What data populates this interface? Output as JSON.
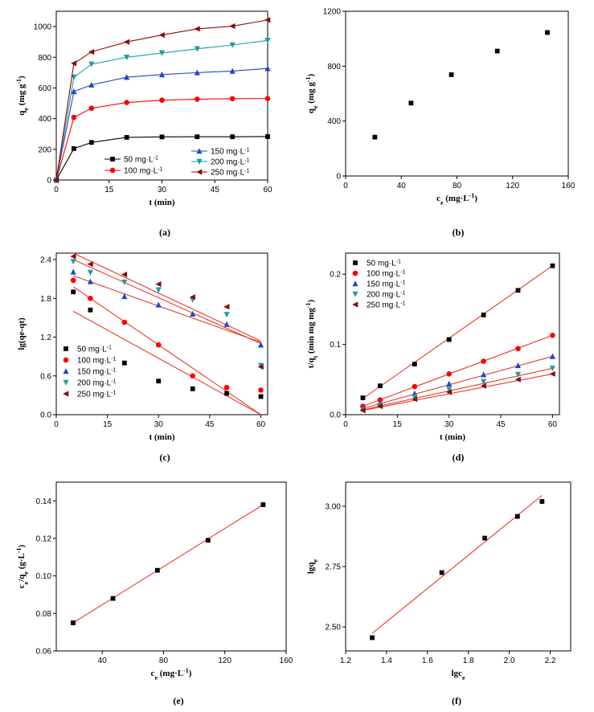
{
  "series_colors": [
    "#000000",
    "#ff0000",
    "#1f46c8",
    "#1e9e9e",
    "#8b0a0a"
  ],
  "fit_line_color": "#e8392a",
  "chart_data": [
    {
      "id": "a",
      "type": "line",
      "panel_label": "(a)",
      "xlabel_parts": [
        {
          "t": "t (min)"
        }
      ],
      "ylabel_parts": [
        {
          "t": "q"
        },
        {
          "t": "e",
          "sub": true
        },
        {
          "t": " (mg g"
        },
        {
          "t": "-1",
          "sup": true
        },
        {
          "t": ")"
        }
      ],
      "xlim": [
        0,
        60
      ],
      "ylim": [
        0,
        1100
      ],
      "xticks": [
        0,
        15,
        30,
        45,
        60
      ],
      "yticks": [
        0,
        200,
        400,
        600,
        800,
        1000
      ],
      "connect_points": true,
      "legend": {
        "placement": "bottom-right",
        "columns": 2
      },
      "series": [
        {
          "name_main": "50 mg·L",
          "name_sup": "-1",
          "marker": "square",
          "points": [
            [
              0,
              0
            ],
            [
              5,
              205
            ],
            [
              10,
              245
            ],
            [
              20,
              278
            ],
            [
              30,
              281
            ],
            [
              40,
              282
            ],
            [
              50,
              282
            ],
            [
              60,
              283
            ]
          ]
        },
        {
          "name_main": "100 mg·L",
          "name_sup": "-1",
          "marker": "circle",
          "points": [
            [
              0,
              0
            ],
            [
              5,
              408
            ],
            [
              10,
              468
            ],
            [
              20,
              505
            ],
            [
              30,
              520
            ],
            [
              40,
              527
            ],
            [
              50,
              530
            ],
            [
              60,
              531
            ]
          ]
        },
        {
          "name_main": "150 mg·L",
          "name_sup": "-1",
          "marker": "triangle-up",
          "points": [
            [
              0,
              0
            ],
            [
              5,
              577
            ],
            [
              10,
              620
            ],
            [
              20,
              670
            ],
            [
              30,
              687
            ],
            [
              40,
              700
            ],
            [
              50,
              710
            ],
            [
              60,
              727
            ]
          ]
        },
        {
          "name_main": "200 mg·L",
          "name_sup": "-1",
          "marker": "triangle-down",
          "points": [
            [
              0,
              0
            ],
            [
              5,
              670
            ],
            [
              10,
              755
            ],
            [
              20,
              800
            ],
            [
              30,
              828
            ],
            [
              40,
              855
            ],
            [
              50,
              880
            ],
            [
              60,
              910
            ]
          ]
        },
        {
          "name_main": "250 mg·L",
          "name_sup": "-1",
          "marker": "triangle-left",
          "points": [
            [
              0,
              0
            ],
            [
              5,
              760
            ],
            [
              10,
              835
            ],
            [
              20,
              900
            ],
            [
              30,
              945
            ],
            [
              40,
              985
            ],
            [
              50,
              1003
            ],
            [
              60,
              1043
            ]
          ]
        }
      ]
    },
    {
      "id": "b",
      "type": "scatter",
      "panel_label": "(b)",
      "xlabel_parts": [
        {
          "t": "c"
        },
        {
          "t": "e",
          "sub": true
        },
        {
          "t": " (mg·L"
        },
        {
          "t": "-1",
          "sup": true
        },
        {
          "t": ")"
        }
      ],
      "ylabel_parts": [
        {
          "t": "q"
        },
        {
          "t": "e",
          "sub": true
        },
        {
          "t": " (mg g"
        },
        {
          "t": "-1",
          "sup": true
        },
        {
          "t": ")"
        }
      ],
      "xlim": [
        0,
        160
      ],
      "ylim": [
        0,
        1200
      ],
      "xticks": [
        0,
        40,
        80,
        120,
        160
      ],
      "yticks": [
        0,
        400,
        800,
        1200
      ],
      "series": [
        {
          "marker": "square",
          "points": [
            [
              21,
              283
            ],
            [
              47,
              531
            ],
            [
              76,
              738
            ],
            [
              109,
              910
            ],
            [
              145,
              1045
            ]
          ]
        }
      ]
    },
    {
      "id": "c",
      "type": "scatter",
      "panel_label": "(c)",
      "xlabel_parts": [
        {
          "t": "t (min)"
        }
      ],
      "ylabel_parts": [
        {
          "t": "lg(qe-qt)"
        }
      ],
      "xlim": [
        0,
        62
      ],
      "ylim": [
        0,
        2.5
      ],
      "xticks": [
        0,
        15,
        30,
        45,
        60
      ],
      "yticks": [
        0.0,
        0.6,
        1.2,
        1.8,
        2.4
      ],
      "ytick_decimals": 1,
      "legend": {
        "placement": "bottom-left",
        "columns": 1
      },
      "series": [
        {
          "name_main": "50 mg·L",
          "name_sup": "-1",
          "marker": "square",
          "points": [
            [
              5,
              1.9
            ],
            [
              10,
              1.62
            ],
            [
              20,
              0.8
            ],
            [
              30,
              0.52
            ],
            [
              40,
              0.4
            ],
            [
              50,
              0.33
            ],
            [
              60,
              0.28
            ]
          ],
          "fit": [
            [
              5,
              1.6
            ],
            [
              60,
              0.0
            ]
          ]
        },
        {
          "name_main": "100 mg·L",
          "name_sup": "-1",
          "marker": "circle",
          "points": [
            [
              5,
              2.08
            ],
            [
              10,
              1.8
            ],
            [
              20,
              1.43
            ],
            [
              30,
              1.08
            ],
            [
              40,
              0.6
            ],
            [
              50,
              0.42
            ],
            [
              60,
              0.38
            ]
          ],
          "fit": [
            [
              5,
              1.98
            ],
            [
              60,
              0.0
            ]
          ]
        },
        {
          "name_main": "150 mg·L",
          "name_sup": "-1",
          "marker": "triangle-up",
          "points": [
            [
              5,
              2.21
            ],
            [
              10,
              2.06
            ],
            [
              20,
              1.83
            ],
            [
              30,
              1.7
            ],
            [
              40,
              1.56
            ],
            [
              50,
              1.4
            ],
            [
              60,
              1.08
            ]
          ],
          "fit": [
            [
              5,
              2.15
            ],
            [
              60,
              1.12
            ]
          ]
        },
        {
          "name_main": "200 mg·L",
          "name_sup": "-1",
          "marker": "triangle-down",
          "points": [
            [
              5,
              2.37
            ],
            [
              10,
              2.2
            ],
            [
              20,
              2.05
            ],
            [
              30,
              1.93
            ],
            [
              40,
              1.78
            ],
            [
              50,
              1.55
            ],
            [
              60,
              0.76
            ]
          ],
          "fit": [
            [
              5,
              2.4
            ],
            [
              60,
              1.1
            ]
          ]
        },
        {
          "name_main": "250 mg·L",
          "name_sup": "-1",
          "marker": "triangle-left",
          "points": [
            [
              5,
              2.45
            ],
            [
              10,
              2.33
            ],
            [
              20,
              2.17
            ],
            [
              30,
              2.02
            ],
            [
              40,
              1.82
            ],
            [
              50,
              1.67
            ],
            [
              60,
              0.74
            ]
          ],
          "fit": [
            [
              5,
              2.5
            ],
            [
              60,
              1.14
            ]
          ]
        }
      ]
    },
    {
      "id": "d",
      "type": "scatter",
      "panel_label": "(d)",
      "xlabel_parts": [
        {
          "t": "t (min)"
        }
      ],
      "ylabel_parts": [
        {
          "t": "t/q"
        },
        {
          "t": "t",
          "sub": true
        },
        {
          "t": " (min mg mg"
        },
        {
          "t": "-1",
          "sup": true
        },
        {
          "t": ")"
        }
      ],
      "xlim": [
        0,
        62
      ],
      "ylim": [
        0,
        0.23
      ],
      "xticks": [
        0,
        15,
        30,
        45,
        60
      ],
      "yticks": [
        0.0,
        0.1,
        0.2
      ],
      "ytick_decimals": 1,
      "legend": {
        "placement": "top-left",
        "columns": 1
      },
      "series": [
        {
          "name_main": "50 mg·L",
          "name_sup": "-1",
          "marker": "square",
          "points": [
            [
              5,
              0.024
            ],
            [
              10,
              0.041
            ],
            [
              20,
              0.072
            ],
            [
              30,
              0.107
            ],
            [
              40,
              0.142
            ],
            [
              50,
              0.177
            ],
            [
              60,
              0.212
            ]
          ],
          "fit": [
            [
              5,
              0.023
            ],
            [
              60,
              0.212
            ]
          ]
        },
        {
          "name_main": "100 mg·L",
          "name_sup": "-1",
          "marker": "circle",
          "points": [
            [
              5,
              0.012
            ],
            [
              10,
              0.021
            ],
            [
              20,
              0.04
            ],
            [
              30,
              0.058
            ],
            [
              40,
              0.076
            ],
            [
              50,
              0.094
            ],
            [
              60,
              0.113
            ]
          ],
          "fit": [
            [
              5,
              0.012
            ],
            [
              60,
              0.113
            ]
          ]
        },
        {
          "name_main": "150 mg·L",
          "name_sup": "-1",
          "marker": "triangle-up",
          "points": [
            [
              5,
              0.009
            ],
            [
              10,
              0.016
            ],
            [
              20,
              0.03
            ],
            [
              30,
              0.044
            ],
            [
              40,
              0.057
            ],
            [
              50,
              0.07
            ],
            [
              60,
              0.083
            ]
          ],
          "fit": [
            [
              5,
              0.009
            ],
            [
              60,
              0.083
            ]
          ]
        },
        {
          "name_main": "200 mg·L",
          "name_sup": "-1",
          "marker": "triangle-down",
          "points": [
            [
              5,
              0.007
            ],
            [
              10,
              0.013
            ],
            [
              20,
              0.025
            ],
            [
              30,
              0.036
            ],
            [
              40,
              0.047
            ],
            [
              50,
              0.057
            ],
            [
              60,
              0.066
            ]
          ],
          "fit": [
            [
              5,
              0.007
            ],
            [
              60,
              0.066
            ]
          ]
        },
        {
          "name_main": "250 mg·L",
          "name_sup": "-1",
          "marker": "triangle-left",
          "points": [
            [
              5,
              0.006
            ],
            [
              10,
              0.012
            ],
            [
              20,
              0.022
            ],
            [
              30,
              0.032
            ],
            [
              40,
              0.041
            ],
            [
              50,
              0.05
            ],
            [
              60,
              0.058
            ]
          ],
          "fit": [
            [
              5,
              0.006
            ],
            [
              60,
              0.058
            ]
          ]
        }
      ]
    },
    {
      "id": "e",
      "type": "scatter",
      "panel_label": "(e)",
      "xlabel_parts": [
        {
          "t": "c"
        },
        {
          "t": "e",
          "sub": true
        },
        {
          "t": " (mg·L"
        },
        {
          "t": "-1",
          "sup": true
        },
        {
          "t": ")"
        }
      ],
      "ylabel_parts": [
        {
          "t": "c"
        },
        {
          "t": "e",
          "sub": true
        },
        {
          "t": "/q"
        },
        {
          "t": "e",
          "sub": true
        },
        {
          "t": " (g·L"
        },
        {
          "t": "-1",
          "sup": true
        },
        {
          "t": ")"
        }
      ],
      "xlim": [
        10,
        160
      ],
      "ylim": [
        0.06,
        0.15
      ],
      "xticks": [
        40,
        80,
        120,
        160
      ],
      "yticks": [
        0.06,
        0.08,
        0.1,
        0.12,
        0.14
      ],
      "ytick_decimals": 2,
      "series": [
        {
          "marker": "square",
          "points": [
            [
              21,
              0.075
            ],
            [
              47,
              0.088
            ],
            [
              76,
              0.103
            ],
            [
              109,
              0.119
            ],
            [
              145,
              0.138
            ]
          ],
          "fit": [
            [
              21,
              0.075
            ],
            [
              145,
              0.138
            ]
          ]
        }
      ]
    },
    {
      "id": "f",
      "type": "scatter",
      "panel_label": "(f)",
      "xlabel_parts": [
        {
          "t": "lgc"
        },
        {
          "t": "e",
          "sub": true
        }
      ],
      "ylabel_parts": [
        {
          "t": "lgq"
        },
        {
          "t": "e",
          "sub": true
        }
      ],
      "xlim": [
        1.2,
        2.3
      ],
      "ylim": [
        2.4,
        3.1
      ],
      "xticks": [
        1.2,
        1.4,
        1.6,
        1.8,
        2.0,
        2.2
      ],
      "yticks": [
        2.5,
        2.75,
        3.0
      ],
      "xtick_decimals": 1,
      "ytick_decimals": 2,
      "series": [
        {
          "marker": "square",
          "points": [
            [
              1.33,
              2.455
            ],
            [
              1.67,
              2.725
            ],
            [
              1.88,
              2.868
            ],
            [
              2.04,
              2.958
            ],
            [
              2.16,
              3.02
            ]
          ],
          "fit": [
            [
              1.33,
              2.473
            ],
            [
              2.16,
              3.045
            ]
          ]
        }
      ]
    }
  ]
}
